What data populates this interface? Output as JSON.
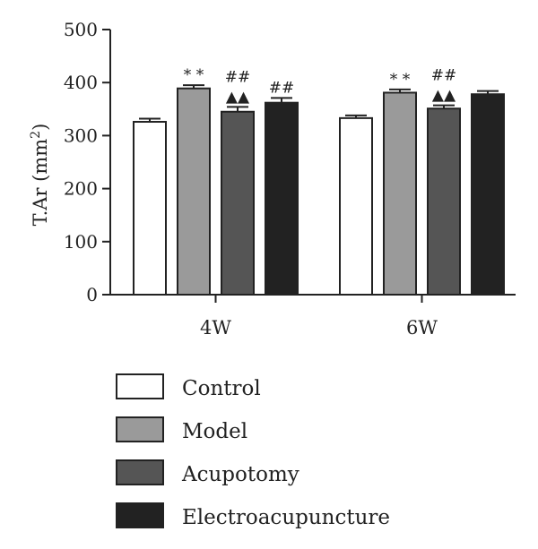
{
  "chart_data": {
    "type": "bar",
    "categories": [
      "4W",
      "6W"
    ],
    "ylabel_main": "T.Ar (mm",
    "ylabel_sup": "2",
    "ylabel_close": ")",
    "ylim": [
      0,
      500
    ],
    "yticks": [
      "0",
      "100",
      "200",
      "300",
      "400",
      "500"
    ],
    "series": [
      {
        "name": "Control",
        "values": [
          326,
          333
        ],
        "errors": [
          6,
          5
        ],
        "color": "#ffffff"
      },
      {
        "name": "Model",
        "values": [
          389,
          381
        ],
        "errors": [
          6,
          6
        ],
        "color": "#9a9a9a"
      },
      {
        "name": "Acupotomy",
        "values": [
          345,
          351
        ],
        "errors": [
          9,
          6
        ],
        "color": "#555555"
      },
      {
        "name": "Electroacupuncture",
        "values": [
          362,
          378
        ],
        "errors": [
          9,
          6
        ],
        "color": "#222222"
      }
    ],
    "annotations": [
      {
        "category": 0,
        "series": 1,
        "lines": [
          "* *"
        ]
      },
      {
        "category": 0,
        "series": 2,
        "lines": [
          "##",
          "▲▲"
        ]
      },
      {
        "category": 0,
        "series": 3,
        "lines": [
          "##"
        ]
      },
      {
        "category": 1,
        "series": 1,
        "lines": [
          "* *"
        ]
      },
      {
        "category": 1,
        "series": 2,
        "lines": [
          "##",
          "▲▲"
        ]
      }
    ]
  }
}
